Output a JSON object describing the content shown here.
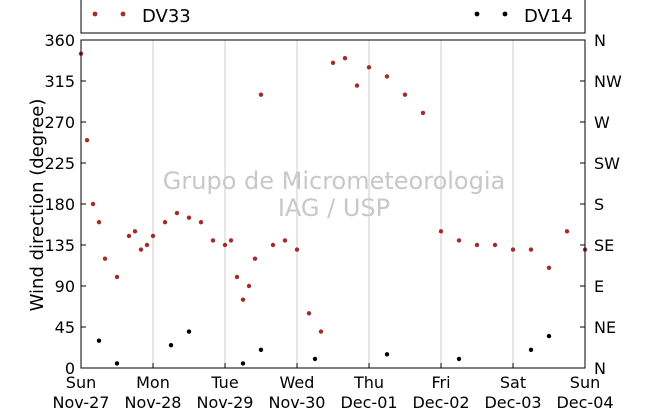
{
  "chart_data": {
    "type": "scatter",
    "title": "",
    "ylabel": "Wind direction (degree)",
    "xlabel": "",
    "ylim": [
      0,
      360
    ],
    "yticks": [
      0,
      45,
      90,
      135,
      180,
      225,
      270,
      315,
      360
    ],
    "ytick_labels": [
      "0",
      "45",
      "90",
      "135",
      "180",
      "225",
      "270",
      "315",
      "360"
    ],
    "right_ticks": [
      0,
      45,
      90,
      135,
      180,
      225,
      270,
      315,
      360
    ],
    "right_tick_labels": [
      "N",
      "NE",
      "E",
      "SE",
      "S",
      "SW",
      "W",
      "NW",
      "N"
    ],
    "xlim": [
      "2011-11-27",
      "2011-12-04"
    ],
    "xticks": [
      {
        "day": "Sun",
        "date": "Nov-27"
      },
      {
        "day": "Mon",
        "date": "Nov-28"
      },
      {
        "day": "Tue",
        "date": "Nov-29"
      },
      {
        "day": "Wed",
        "date": "Nov-30"
      },
      {
        "day": "Thu",
        "date": "Dec-01"
      },
      {
        "day": "Fri",
        "date": "Dec-02"
      },
      {
        "day": "Sat",
        "date": "Dec-03"
      },
      {
        "day": "Sun",
        "date": "Dec-04"
      }
    ],
    "grid": "vertical",
    "legend_placement": "top",
    "watermark": [
      "Grupo de Micrometeorologia",
      "IAG / USP"
    ],
    "series": [
      {
        "name": "DV33",
        "color": "#a52a2a",
        "x": [
          "Nov-27 00:00",
          "Nov-27 02:00",
          "Nov-27 04:00",
          "Nov-27 06:00",
          "Nov-27 08:00",
          "Nov-27 12:00",
          "Nov-27 16:00",
          "Nov-27 18:00",
          "Nov-27 20:00",
          "Nov-27 22:00",
          "Nov-28 00:00",
          "Nov-28 04:00",
          "Nov-28 08:00",
          "Nov-28 12:00",
          "Nov-28 16:00",
          "Nov-28 20:00",
          "Nov-29 00:00",
          "Nov-29 02:00",
          "Nov-29 04:00",
          "Nov-29 06:00",
          "Nov-29 08:00",
          "Nov-29 10:00",
          "Nov-29 12:00",
          "Nov-29 16:00",
          "Nov-29 20:00",
          "Nov-30 00:00",
          "Nov-30 04:00",
          "Nov-30 08:00",
          "Nov-30 12:00",
          "Nov-30 16:00",
          "Nov-30 20:00",
          "Dec-01 00:00",
          "Dec-01 06:00",
          "Dec-01 12:00",
          "Dec-01 18:00",
          "Dec-02 00:00",
          "Dec-02 06:00",
          "Dec-02 12:00",
          "Dec-02 18:00",
          "Dec-03 00:00",
          "Dec-03 06:00",
          "Dec-03 12:00",
          "Dec-03 18:00",
          "Dec-04 00:00"
        ],
        "y": [
          345,
          250,
          180,
          160,
          120,
          100,
          145,
          150,
          130,
          135,
          145,
          160,
          170,
          165,
          160,
          140,
          135,
          140,
          100,
          75,
          90,
          120,
          300,
          135,
          140,
          130,
          60,
          40,
          335,
          340,
          310,
          330,
          320,
          300,
          280,
          150,
          140,
          135,
          135,
          130,
          130,
          110,
          150,
          130
        ]
      },
      {
        "name": "DV14",
        "color": "#000000",
        "x": [
          "Nov-27 06:00",
          "Nov-27 12:00",
          "Nov-28 06:00",
          "Nov-28 12:00",
          "Nov-29 06:00",
          "Nov-29 12:00",
          "Nov-30 06:00",
          "Dec-01 06:00",
          "Dec-02 06:00",
          "Dec-03 06:00",
          "Dec-03 12:00"
        ],
        "y": [
          30,
          5,
          25,
          40,
          5,
          20,
          10,
          15,
          10,
          20,
          35
        ]
      }
    ]
  }
}
